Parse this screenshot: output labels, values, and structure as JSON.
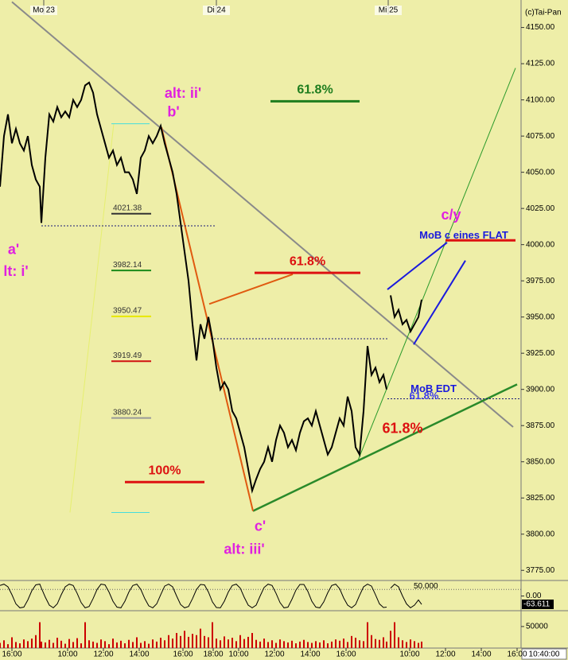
{
  "chart_data": {
    "type": "line",
    "source": "(c)Tai-Pan",
    "xlim": [
      0,
      655
    ],
    "ylim": [
      3768,
      4169
    ],
    "yticks": [
      {
        "value": 3775,
        "label": "3775.00"
      },
      {
        "value": 3800,
        "label": "3800.00"
      },
      {
        "value": 3825,
        "label": "3825.00"
      },
      {
        "value": 3850,
        "label": "3850.00"
      },
      {
        "value": 3875,
        "label": "3875.00"
      },
      {
        "value": 3900,
        "label": "3900.00"
      },
      {
        "value": 3925,
        "label": "3925.00"
      },
      {
        "value": 3950,
        "label": "3950.00"
      },
      {
        "value": 3975,
        "label": "3975.00"
      },
      {
        "value": 4000,
        "label": "4000.00"
      },
      {
        "value": 4025,
        "label": "4025.00"
      },
      {
        "value": 4050,
        "label": "4050.00"
      },
      {
        "value": 4075,
        "label": "4075.00"
      },
      {
        "value": 4100,
        "label": "4100.00"
      },
      {
        "value": 4125,
        "label": "4125.00"
      },
      {
        "value": 4150,
        "label": "4150.00"
      }
    ],
    "xticks": [
      {
        "value": 15,
        "label": "16:00"
      },
      {
        "value": 85,
        "label": "10:00"
      },
      {
        "value": 130,
        "label": "12:00"
      },
      {
        "value": 175,
        "label": "14:00"
      },
      {
        "value": 230,
        "label": "16:00"
      },
      {
        "value": 268,
        "label": "18:00"
      },
      {
        "value": 300,
        "label": "10:00"
      },
      {
        "value": 345,
        "label": "12:00"
      },
      {
        "value": 390,
        "label": "14:00"
      },
      {
        "value": 435,
        "label": "16:00"
      },
      {
        "value": 515,
        "label": "10:00"
      },
      {
        "value": 560,
        "label": "12:00"
      },
      {
        "value": 605,
        "label": "14:00"
      },
      {
        "value": 650,
        "label": "16:00"
      }
    ],
    "dates": [
      {
        "value": 55,
        "label": "Mo 23"
      },
      {
        "value": 272,
        "label": "Di 24"
      },
      {
        "value": 488,
        "label": "Mi 25"
      }
    ],
    "price": {
      "color": "#000000",
      "x": [
        0,
        5,
        10,
        15,
        20,
        25,
        30,
        35,
        40,
        45,
        50,
        52,
        57,
        62,
        67,
        72,
        77,
        82,
        87,
        92,
        97,
        102,
        107,
        112,
        117,
        122,
        127,
        132,
        137,
        142,
        147,
        152,
        157,
        162,
        167,
        172,
        177,
        182,
        187,
        192,
        197,
        202,
        207,
        212,
        217,
        222,
        227,
        232,
        237,
        242,
        247,
        252,
        257,
        262,
        267,
        272,
        277,
        282,
        287,
        292,
        297,
        302,
        307,
        312,
        317,
        322,
        327,
        332,
        337,
        342,
        347,
        352,
        357,
        362,
        367,
        372,
        377,
        382,
        387,
        392,
        397,
        402,
        407,
        412,
        417,
        422,
        427,
        432,
        437,
        442,
        447,
        452,
        457,
        462,
        467,
        472,
        477,
        482,
        486,
        488,
        491,
        496,
        501,
        506,
        511,
        516,
        521,
        526,
        530
      ],
      "values": [
        4040,
        4075,
        4090,
        4070,
        4080,
        4070,
        4065,
        4075,
        4055,
        4045,
        4040,
        4015,
        4060,
        4090,
        4085,
        4095,
        4088,
        4092,
        4088,
        4100,
        4095,
        4100,
        4110,
        4112,
        4105,
        4090,
        4080,
        4070,
        4060,
        4065,
        4055,
        4060,
        4050,
        4050,
        4045,
        4035,
        4060,
        4065,
        4075,
        4070,
        4075,
        4082,
        4070,
        4060,
        4050,
        4035,
        4015,
        3995,
        3975,
        3945,
        3920,
        3945,
        3935,
        3950,
        3935,
        3915,
        3900,
        3905,
        3900,
        3885,
        3880,
        3870,
        3860,
        3845,
        3830,
        3838,
        3845,
        3850,
        3860,
        3850,
        3865,
        3875,
        3870,
        3860,
        3865,
        3858,
        3870,
        3878,
        3880,
        3875,
        3885,
        3875,
        3865,
        3855,
        3860,
        3870,
        3880,
        3875,
        3895,
        3885,
        3860,
        3855,
        3885,
        3930,
        3910,
        3915,
        3905,
        3910,
        3900,
        null,
        3965,
        3950,
        3955,
        3945,
        3948,
        3940,
        3945,
        3950,
        3962
      ]
    },
    "levels": [
      {
        "label": "61.8%",
        "value": 4099,
        "x": [
          340,
          452
        ],
        "color": "#1e7d1e"
      },
      {
        "label": "61.8%",
        "value": 3980.5,
        "x": [
          320,
          453
        ],
        "color": "#dd1111"
      },
      {
        "label": "100%",
        "value": 3836,
        "x": [
          157,
          257
        ],
        "color": "#dd1111"
      },
      {
        "value": 4003,
        "x": [
          560,
          648
        ],
        "color": "#dd1111"
      }
    ],
    "fib_levels": [
      {
        "value": 4021.38,
        "color": "#333333"
      },
      {
        "value": 3982.14,
        "color": "#1a8a1a"
      },
      {
        "value": 3950.47,
        "color": "#e8e800"
      },
      {
        "value": 3919.49,
        "color": "#d01010"
      },
      {
        "value": 3880.24,
        "color": "#999999"
      }
    ],
    "lines": [
      {
        "x": [
          15,
          645
        ],
        "y": [
          4167.7,
          3874
        ],
        "color": "#8a8a8a",
        "width": 2
      },
      {
        "x": [
          318,
          650
        ],
        "y": [
          3816,
          3903.5
        ],
        "color": "#2a8a2a",
        "width": 2.5
      },
      {
        "x": [
          450,
          648
        ],
        "y": [
          3851,
          4122
        ],
        "color": "#2a9a2a",
        "width": 1
      },
      {
        "x": [
          203,
          318
        ],
        "y": [
          4081,
          3816
        ],
        "color": "#e05a10",
        "width": 2
      },
      {
        "x": [
          263,
          368
        ],
        "y": [
          3959,
          3979.5
        ],
        "color": "#e05a10",
        "width": 2
      },
      {
        "x": [
          487,
          562
        ],
        "y": [
          3969,
          4001.5
        ],
        "color": "#1a1add",
        "width": 2
      },
      {
        "x": [
          520,
          585
        ],
        "y": [
          3931,
          3989
        ],
        "color": "#1a1add",
        "width": 2
      },
      {
        "x": [
          88,
          143
        ],
        "y": [
          3815,
          4083.5
        ],
        "color": "#e6ef70",
        "width": 1
      },
      {
        "x": [
          265,
          487
        ],
        "y": [
          3935,
          3935
        ],
        "color": "#1a1a7a",
        "width": 1,
        "dashed": true
      },
      {
        "x": [
          487,
          655
        ],
        "y": [
          3893.5,
          3893.5
        ],
        "color": "#1a1a7a",
        "width": 1,
        "dashed": true
      },
      {
        "x": [
          52,
          272
        ],
        "y": [
          4013,
          4013
        ],
        "color": "#1a1a7a",
        "width": 1,
        "dashed": true
      },
      {
        "x": [
          140,
          188
        ],
        "y": [
          4083.5,
          4083.5
        ],
        "color": "#44dddd",
        "width": 1
      },
      {
        "x": [
          140,
          188
        ],
        "y": [
          3815,
          3815
        ],
        "color": "#44dddd",
        "width": 1
      }
    ],
    "annotations": [
      {
        "text": "alt: ii'",
        "x": 230,
        "y": 4104,
        "color": "#e020e0"
      },
      {
        "text": "b'",
        "x": 218,
        "y": 4091,
        "color": "#e020e0"
      },
      {
        "text": "a'",
        "x": 17,
        "y": 3996,
        "color": "#e020e0"
      },
      {
        "text": "lt: i'",
        "x": 20,
        "y": 3981,
        "color": "#e020e0"
      },
      {
        "text": "c'",
        "x": 327,
        "y": 3805,
        "color": "#e020e0"
      },
      {
        "text": "alt: iii'",
        "x": 307,
        "y": 3789,
        "color": "#e020e0"
      },
      {
        "text": "c/y",
        "x": 567,
        "y": 4020,
        "color": "#e020e0"
      },
      {
        "text": "MoB c eines FLAT",
        "x": 583,
        "y": 4006,
        "color": "#1a1add"
      },
      {
        "text": "MoB EDT",
        "x": 545,
        "y": 3900,
        "color": "#1a1add"
      },
      {
        "text": "61.8%",
        "x": 533,
        "y": 3895,
        "color": "#3a3aee"
      },
      {
        "text": "61.8%",
        "x": 506,
        "y": 3872.5,
        "color": "#dd1111"
      }
    ],
    "oscillator": {
      "color": "#000000",
      "ylim": [
        -100,
        100
      ],
      "yticks": [
        {
          "value": 0,
          "label": "0.00"
        }
      ],
      "level": {
        "value": 50,
        "label": "50.000"
      },
      "last": {
        "value": -63.611,
        "label": "-63.611"
      },
      "values": [
        80,
        90,
        70,
        10,
        -60,
        -90,
        -85,
        -30,
        40,
        85,
        90,
        60,
        -10,
        -70,
        -90,
        -60,
        10,
        70,
        90,
        80,
        20,
        -50,
        -90,
        -80,
        -20,
        50,
        90,
        85,
        30,
        -40,
        -85,
        -90,
        -40,
        30,
        80,
        90,
        50,
        -20,
        -75,
        -90,
        -60,
        10,
        75,
        90,
        70,
        0,
        -65,
        -90,
        -80,
        -20,
        50,
        88,
        85,
        30,
        -45,
        -88,
        -90,
        -40,
        30,
        80,
        90,
        60,
        -10,
        -70,
        -90,
        -70,
        0,
        65,
        90,
        80,
        20,
        -50,
        -90,
        -85,
        -25,
        45,
        88,
        88,
        35,
        -40,
        -85,
        -90,
        -45,
        25,
        80,
        90,
        55,
        -15,
        -70,
        -90,
        -65,
        5,
        70,
        90,
        75,
        10,
        -60,
        -88,
        -85,
        null,
        60,
        90,
        70,
        0,
        -60,
        -90,
        -70,
        -30,
        -64
      ]
    },
    "volume": {
      "color": "#cc0000",
      "ylim": [
        0,
        83000
      ],
      "yticks": [
        {
          "value": 50000,
          "label": "50000"
        }
      ],
      "values": [
        12000,
        18000,
        9000,
        25000,
        14000,
        11000,
        20000,
        16000,
        22000,
        30000,
        60000,
        15000,
        13000,
        19000,
        12000,
        24000,
        17000,
        10000,
        21000,
        14000,
        23000,
        11000,
        60000,
        18000,
        15000,
        12000,
        20000,
        16000,
        9000,
        22000,
        13000,
        17000,
        11000,
        19000,
        14000,
        25000,
        12000,
        16000,
        10000,
        20000,
        15000,
        24000,
        18000,
        30000,
        22000,
        35000,
        28000,
        40000,
        26000,
        33000,
        30000,
        45000,
        28000,
        25000,
        60000,
        22000,
        18000,
        27000,
        20000,
        24000,
        16000,
        30000,
        21000,
        26000,
        35000,
        19000,
        15000,
        22000,
        14000,
        18000,
        12000,
        20000,
        16000,
        13000,
        17000,
        11000,
        15000,
        19000,
        14000,
        12000,
        16000,
        13000,
        18000,
        11000,
        15000,
        20000,
        17000,
        22000,
        14000,
        28000,
        24000,
        18000,
        16000,
        60000,
        30000,
        21000,
        19000,
        25000,
        15000,
        null,
        40000,
        60000,
        25000,
        18000,
        14000,
        20000,
        16000,
        12000,
        15000
      ]
    },
    "time": "10:40:00"
  }
}
